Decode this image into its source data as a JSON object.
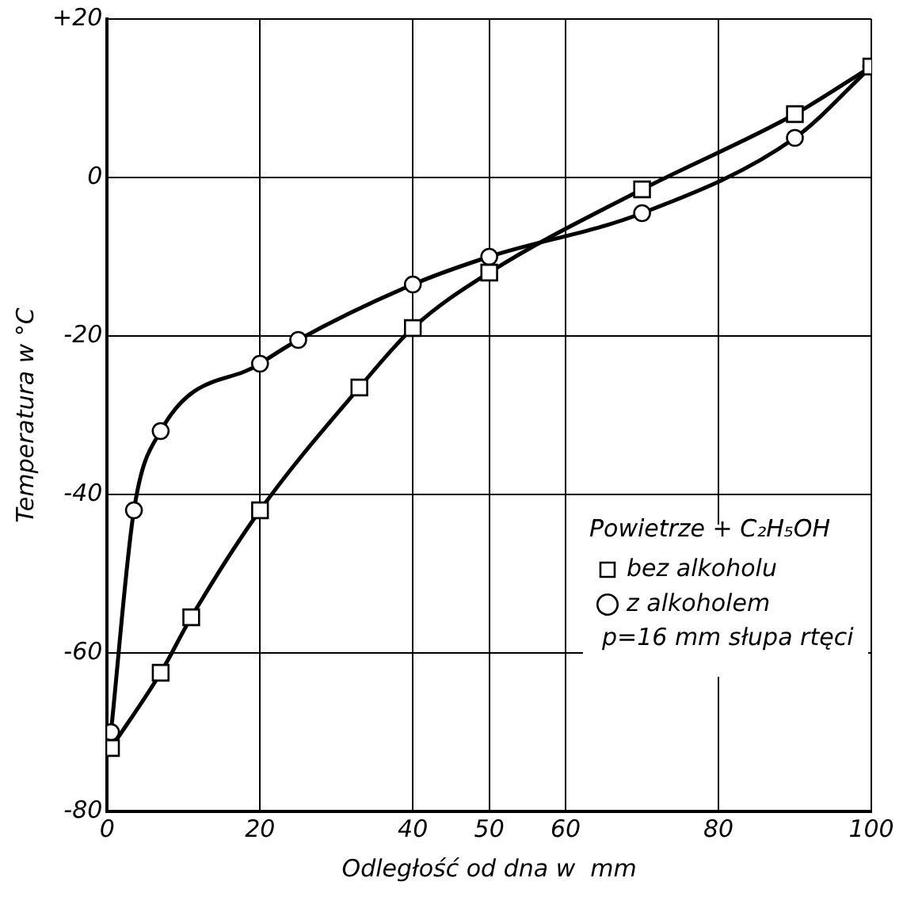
{
  "chart_data": {
    "type": "line",
    "xlabel": "Odległość od dna w  mm",
    "ylabel": "Temperatura w °C",
    "legend_title": "Powietrze + C₂H₅OH",
    "legend": "bottom right",
    "annotations": [
      "p=16 mm słupa rtęci"
    ],
    "xlim": [
      0,
      100
    ],
    "xticks": [
      0,
      20,
      40,
      50,
      60,
      80,
      100
    ],
    "ylim": [
      -80,
      20
    ],
    "yticks": [
      -80,
      -60,
      -40,
      -20,
      0,
      {
        "value": 20,
        "label": "+20"
      }
    ],
    "grid": true,
    "line_style": "solid",
    "series": [
      {
        "name": "bez alkoholu",
        "color": "#000000",
        "marker": "square",
        "x": [
          0.5,
          7,
          11,
          20,
          33,
          40,
          50,
          70,
          90,
          100
        ],
        "values": [
          -72,
          -62.5,
          -55.5,
          -42,
          -26.5,
          -19,
          -12,
          -1.5,
          8,
          14
        ]
      },
      {
        "name": "z alkoholem",
        "color": "#000000",
        "marker": "circle",
        "x": [
          0.5,
          3.5,
          7,
          20,
          25,
          40,
          50,
          70,
          90,
          100
        ],
        "values": [
          -70,
          -42,
          -32,
          -23.5,
          -20.5,
          -13.5,
          -10,
          -4.5,
          5,
          14
        ]
      }
    ]
  }
}
